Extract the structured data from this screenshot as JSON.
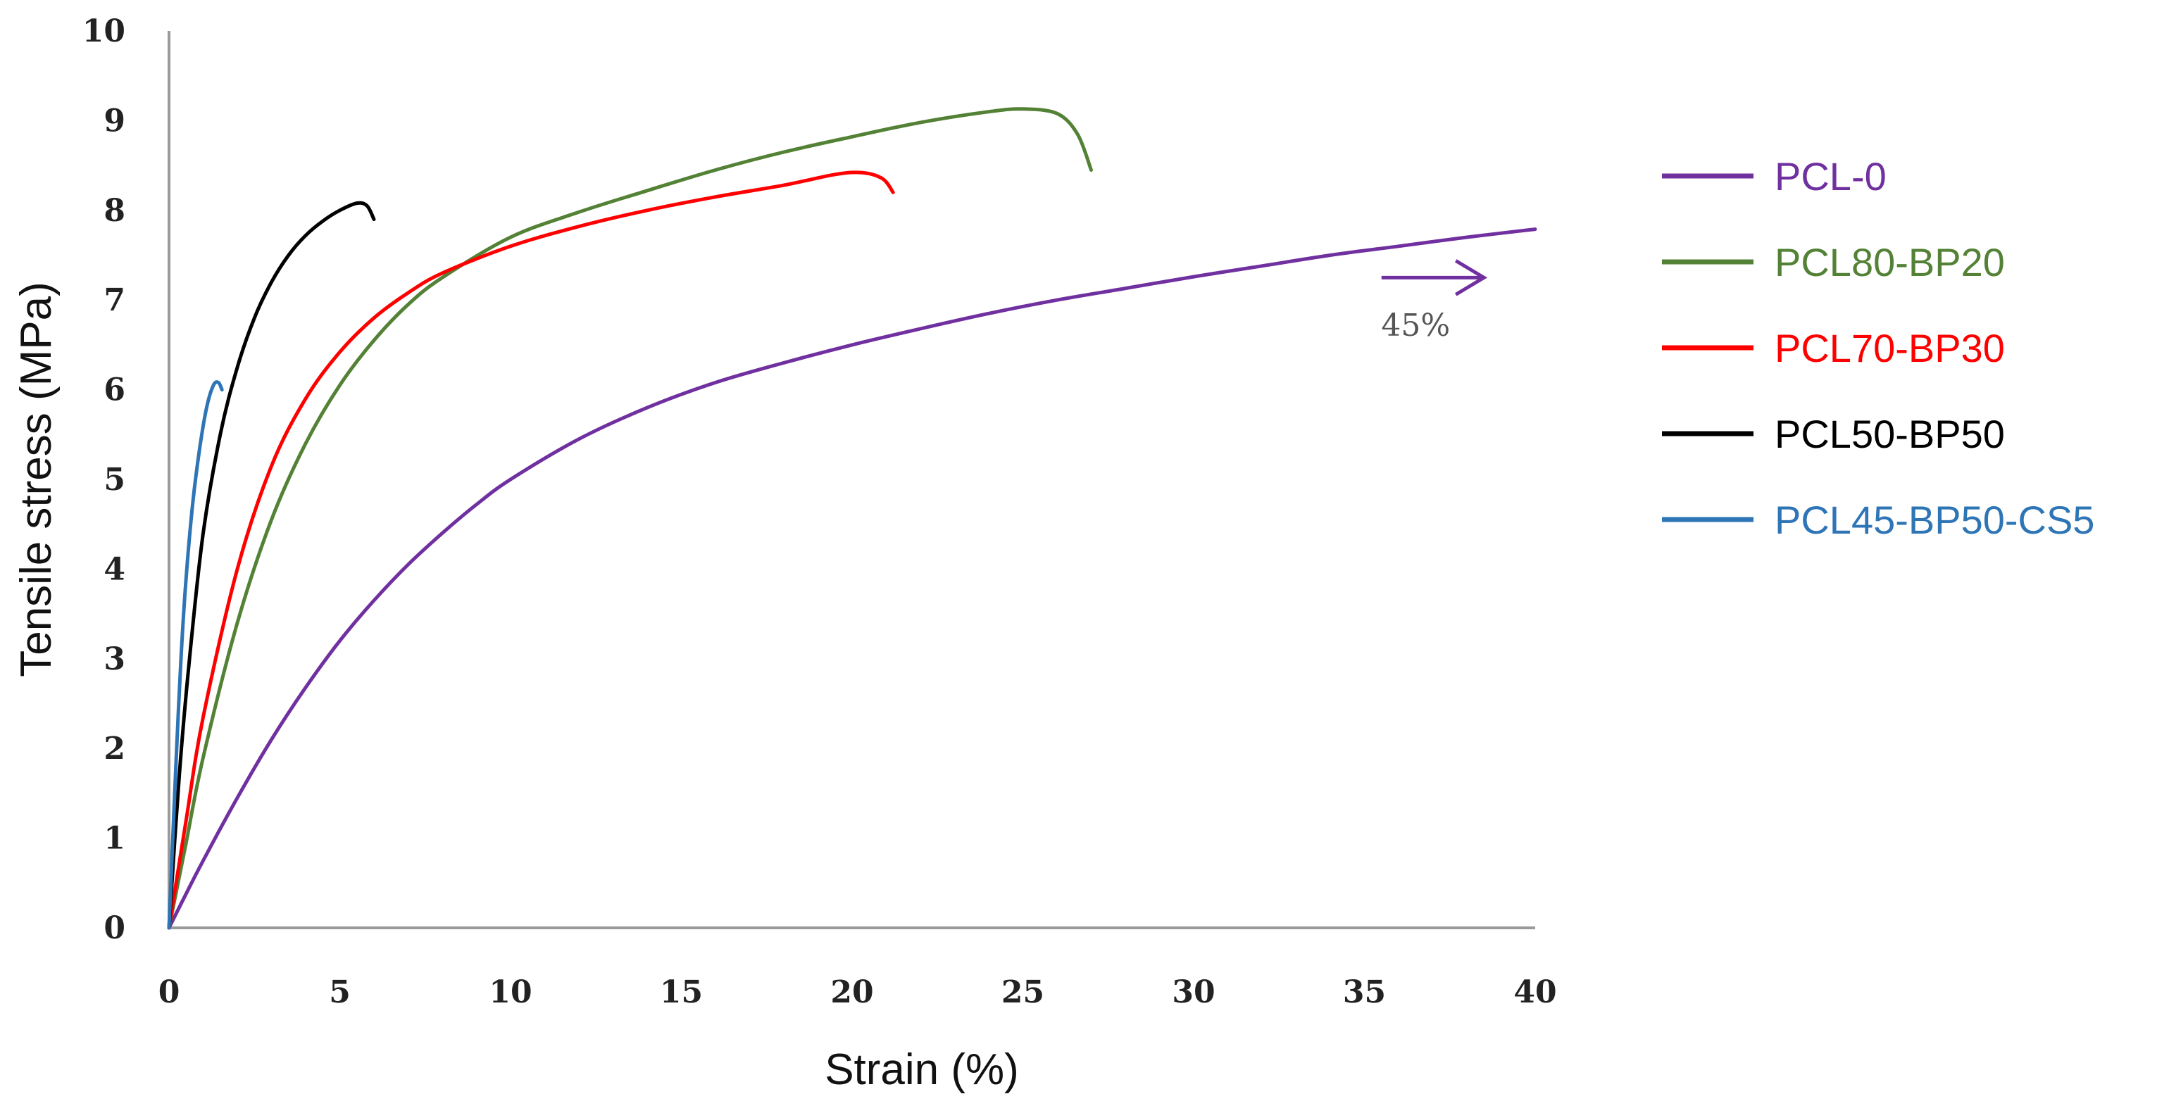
{
  "chart_data": {
    "type": "line",
    "title": "",
    "xlabel": "Strain (%)",
    "ylabel": "Tensile stress (MPa)",
    "xlim": [
      0,
      40
    ],
    "ylim": [
      0,
      10
    ],
    "xticks": [
      0,
      5,
      10,
      15,
      20,
      25,
      30,
      35,
      40
    ],
    "yticks": [
      0,
      1,
      2,
      3,
      4,
      5,
      6,
      7,
      8,
      9,
      10
    ],
    "grid": false,
    "legend_position": "right",
    "series": [
      {
        "name": "PCL-0",
        "color": "#7030a0",
        "x": [
          0,
          0.5,
          1,
          2,
          3,
          4,
          5,
          6,
          7,
          8,
          9,
          10,
          12,
          14,
          16,
          18,
          20,
          22,
          24,
          26,
          28,
          30,
          32,
          34,
          36,
          38,
          40
        ],
        "y": [
          0,
          0.38,
          0.75,
          1.45,
          2.1,
          2.68,
          3.2,
          3.65,
          4.05,
          4.4,
          4.72,
          5.0,
          5.45,
          5.8,
          6.08,
          6.3,
          6.5,
          6.68,
          6.85,
          7.0,
          7.13,
          7.26,
          7.38,
          7.5,
          7.6,
          7.7,
          7.79
        ]
      },
      {
        "name": "PCL80-BP20",
        "color": "#538135",
        "x": [
          0,
          0.5,
          1,
          2,
          3,
          4,
          5,
          6,
          7,
          8,
          10,
          12,
          14,
          16,
          18,
          20,
          22,
          24,
          25,
          26,
          26.6,
          27.0
        ],
        "y": [
          0,
          0.95,
          1.9,
          3.4,
          4.55,
          5.4,
          6.05,
          6.55,
          6.95,
          7.25,
          7.7,
          7.98,
          8.22,
          8.45,
          8.65,
          8.82,
          8.98,
          9.1,
          9.13,
          9.08,
          8.85,
          8.45
        ]
      },
      {
        "name": "PCL70-BP30",
        "color": "#ff0000",
        "x": [
          0,
          0.5,
          1,
          2,
          3,
          4,
          5,
          6,
          7,
          8,
          10,
          12,
          14,
          16,
          18,
          19.5,
          20.3,
          20.9,
          21.2
        ],
        "y": [
          0,
          1.2,
          2.35,
          4.0,
          5.15,
          5.9,
          6.42,
          6.8,
          7.08,
          7.3,
          7.6,
          7.82,
          8.0,
          8.15,
          8.28,
          8.4,
          8.42,
          8.35,
          8.2
        ]
      },
      {
        "name": "PCL50-BP50",
        "color": "#000000",
        "x": [
          0,
          0.3,
          0.6,
          1,
          1.5,
          2,
          2.5,
          3,
          3.5,
          4,
          4.5,
          5,
          5.5,
          5.8,
          6.0
        ],
        "y": [
          0,
          1.7,
          3.0,
          4.4,
          5.5,
          6.25,
          6.8,
          7.2,
          7.5,
          7.72,
          7.88,
          8.0,
          8.08,
          8.05,
          7.9
        ]
      },
      {
        "name": "PCL45-BP50-CS5",
        "color": "#2e75b6",
        "x": [
          0,
          0.1,
          0.2,
          0.35,
          0.5,
          0.7,
          0.9,
          1.1,
          1.3,
          1.45,
          1.55
        ],
        "y": [
          0,
          0.9,
          1.8,
          3.0,
          3.9,
          4.75,
          5.35,
          5.8,
          6.05,
          6.08,
          6.0
        ]
      }
    ],
    "annotations": [
      {
        "text": "45%",
        "arrow_from": [
          35.5,
          7.25
        ],
        "arrow_to": [
          38.5,
          7.25
        ],
        "text_at": [
          36.5,
          6.6
        ],
        "color": "#7030a0"
      }
    ]
  }
}
